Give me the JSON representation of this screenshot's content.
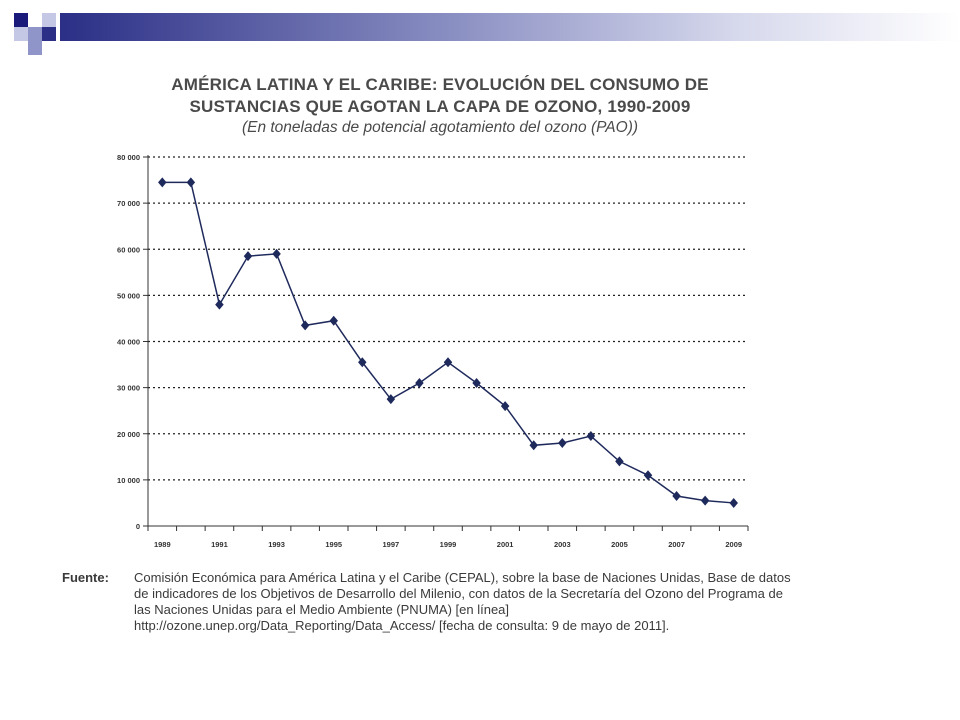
{
  "colors": {
    "series": "#1f2a5c",
    "grid": "#222222",
    "deco_dark": "#1a1a7a",
    "deco_mid": "#8f95c8",
    "deco_light": "#c4c8e4"
  },
  "chart_data": {
    "type": "line",
    "title_line1": "AMÉRICA LATINA Y EL CARIBE: EVOLUCIÓN DEL CONSUMO DE",
    "title_line2": "SUSTANCIAS QUE AGOTAN LA CAPA DE OZONO, 1990-2009",
    "subtitle": "(En toneladas de potencial agotamiento del ozono (PAO))",
    "x": [
      1989,
      1990,
      1991,
      1992,
      1993,
      1994,
      1995,
      1996,
      1997,
      1998,
      1999,
      2000,
      2001,
      2002,
      2003,
      2004,
      2005,
      2006,
      2007,
      2008,
      2009
    ],
    "x_tick_labels": [
      "1989",
      "1991",
      "1993",
      "1995",
      "1997",
      "1999",
      "2001",
      "2003",
      "2005",
      "2007",
      "2009"
    ],
    "x_tick_values": [
      1989,
      1991,
      1993,
      1995,
      1997,
      1999,
      2001,
      2003,
      2005,
      2007,
      2009
    ],
    "y_tick_labels": [
      "0",
      "10 000",
      "20 000",
      "30 000",
      "40 000",
      "50 000",
      "60 000",
      "70 000",
      "80 000"
    ],
    "y_tick_values": [
      0,
      10000,
      20000,
      30000,
      40000,
      50000,
      60000,
      70000,
      80000
    ],
    "ylim": [
      0,
      80000
    ],
    "xlim": [
      1988.5,
      2009.5
    ],
    "grid": "horizontal dotted",
    "series": [
      {
        "values": [
          74500,
          74500,
          48000,
          58500,
          59000,
          43500,
          44500,
          35500,
          27500,
          31000,
          35500,
          31000,
          26000,
          17500,
          18000,
          19500,
          14000,
          11000,
          6500,
          5500,
          5000
        ]
      }
    ],
    "xlabel": "",
    "ylabel": ""
  },
  "source": {
    "label": "Fuente:",
    "text": "Comisión Económica para América Latina y el Caribe (CEPAL), sobre la base de Naciones Unidas, Base de datos de indicadores de los Objetivos de Desarrollo del Milenio, con datos de la Secretaría del Ozono del Programa de las Naciones Unidas para el Medio Ambiente (PNUMA) [en línea] http://ozone.unep.org/Data_Reporting/Data_Access/ [fecha de consulta: 9 de mayo de 2011]."
  }
}
